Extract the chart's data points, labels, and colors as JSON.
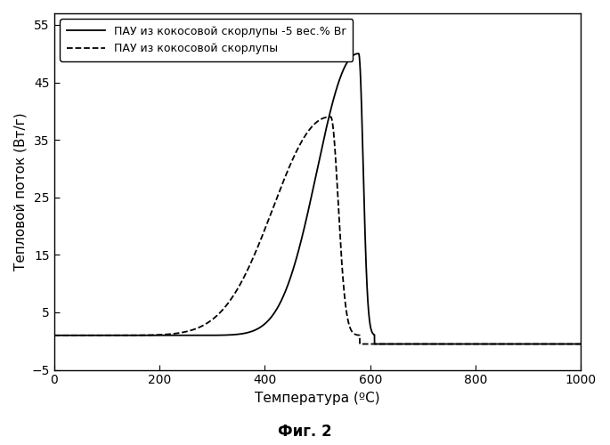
{
  "title": "Фиг. 2",
  "xlabel": "Температура (ºC)",
  "ylabel": "Тепловой поток (Вт/г)",
  "xlim": [
    0,
    1000
  ],
  "ylim": [
    -5,
    57
  ],
  "xticks": [
    0,
    200,
    400,
    600,
    800,
    1000
  ],
  "yticks": [
    -5,
    5,
    15,
    25,
    35,
    45,
    55
  ],
  "legend1": "ПАУ из кокосовой скорлупы -5 вес.% Br",
  "legend2": "ПАУ из кокосовой скорлупы",
  "solid_peak_x": 578,
  "solid_peak_y": 50,
  "dashed_peak_x": 525,
  "dashed_peak_y": 39,
  "baseline_y": 1.0,
  "after_baseline_y": -0.5,
  "background_color": "#ffffff",
  "line_color": "#000000"
}
